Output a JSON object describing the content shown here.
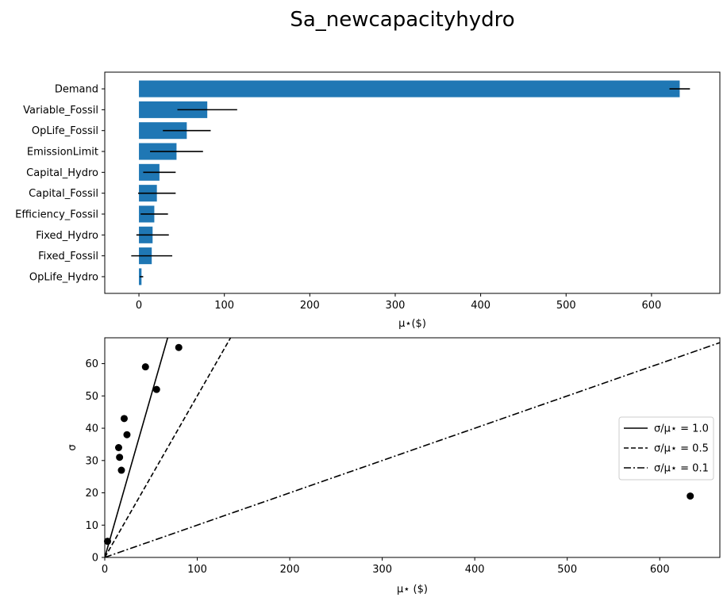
{
  "figure": {
    "title": "Sa_newcapacityhydro"
  },
  "chart_data": [
    {
      "type": "bar",
      "orientation": "horizontal",
      "categories": [
        "Demand",
        "Variable_Fossil",
        "OpLife_Fossil",
        "EmissionLimit",
        "Capital_Hydro",
        "Capital_Fossil",
        "Efficiency_Fossil",
        "Fixed_Hydro",
        "Fixed_Fossil",
        "OpLife_Hydro"
      ],
      "values": [
        633,
        80,
        56,
        44,
        24,
        21,
        18,
        16,
        15,
        3
      ],
      "errors": [
        12,
        35,
        28,
        31,
        19,
        22,
        16,
        19,
        24,
        2
      ],
      "xlabel": "μ⋆($)",
      "xticks": [
        0,
        100,
        200,
        300,
        400,
        500,
        600
      ],
      "xlim": [
        -40,
        680
      ],
      "bar_color": "#1f77b4",
      "error_color": "#000000"
    },
    {
      "type": "scatter",
      "x": [
        633,
        80,
        56,
        44,
        24,
        21,
        18,
        16,
        15,
        3
      ],
      "y": [
        19,
        65,
        52,
        59,
        38,
        43,
        27,
        31,
        34,
        5
      ],
      "xlabel": "μ⋆  ($)",
      "ylabel": "σ",
      "xlim": [
        0,
        665
      ],
      "ylim": [
        0,
        68
      ],
      "xticks": [
        0,
        100,
        200,
        300,
        400,
        500,
        600
      ],
      "yticks": [
        0,
        10,
        20,
        30,
        40,
        50,
        60
      ],
      "point_color": "#000000",
      "lines": [
        {
          "label": "σ/μ⋆ = 1.0",
          "slope": 1.0,
          "style": "solid"
        },
        {
          "label": "σ/μ⋆ = 0.5",
          "slope": 0.5,
          "style": "dashed"
        },
        {
          "label": "σ/μ⋆ = 0.1",
          "slope": 0.1,
          "style": "dashdot"
        }
      ],
      "legend_position": "center-right"
    }
  ]
}
